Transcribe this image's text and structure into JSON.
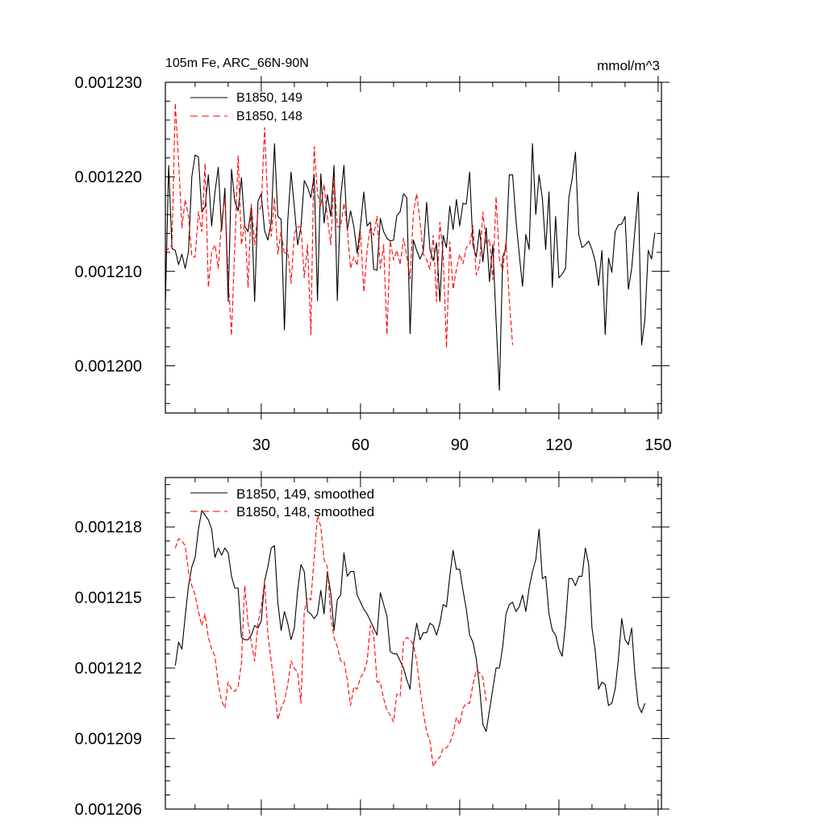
{
  "chart_data": [
    {
      "type": "line",
      "title_left": "105m Fe, ARC_66N-90N",
      "title_right": "mmol/m^3",
      "xlim": [
        1,
        151
      ],
      "ylim": [
        0.001195,
        0.00123
      ],
      "xticks": [
        30,
        60,
        90,
        120,
        150
      ],
      "xtick_labels": [
        "30",
        "60",
        "90",
        "120",
        "150"
      ],
      "yticks": [
        0.0012,
        0.00121,
        0.00122,
        0.00123
      ],
      "ytick_labels": [
        "0.001200",
        "0.001210",
        "0.001220",
        "0.001230"
      ],
      "show_x_labels": true,
      "legend_position": "top-left",
      "series": [
        {
          "name": "B1850, 149",
          "color": "#000000",
          "dash": "solid",
          "x_start": 1,
          "values": [
            0.0012066,
            0.0012212,
            0.0012124,
            0.0012122,
            0.0012107,
            0.0012118,
            0.0012103,
            0.0012121,
            0.00122,
            0.0012223,
            0.0012221,
            0.0012163,
            0.0012168,
            0.0012202,
            0.0012148,
            0.0012184,
            0.001221,
            0.0012143,
            0.0012188,
            0.0012068,
            0.0012208,
            0.0012174,
            0.0012164,
            0.0012199,
            0.0012148,
            0.0012142,
            0.0012168,
            0.0012068,
            0.0012174,
            0.0012182,
            0.0012143,
            0.0012133,
            0.0012152,
            0.0012235,
            0.0012158,
            0.0012155,
            0.0012038,
            0.0012153,
            0.0012205,
            0.0012168,
            0.0012128,
            0.0012147,
            0.0012196,
            0.0012189,
            0.0012178,
            0.0012202,
            0.0012069,
            0.0012203,
            0.0012151,
            0.0012181,
            0.0012158,
            0.0012212,
            0.0012069,
            0.0012178,
            0.0012212,
            0.0012143,
            0.0012164,
            0.0012147,
            0.0012119,
            0.0012148,
            0.0012184,
            0.0012148,
            0.0012152,
            0.0012102,
            0.0012101,
            0.0012156,
            0.0012142,
            0.0012135,
            0.0012132,
            0.0012133,
            0.0012159,
            0.0012163,
            0.0012182,
            0.0012178,
            0.0012034,
            0.0012133,
            0.0012122,
            0.0012113,
            0.0012121,
            0.0012173,
            0.0012123,
            0.0012111,
            0.001213,
            0.0012068,
            0.0012138,
            0.0012125,
            0.0012169,
            0.0012144,
            0.0012176,
            0.0012148,
            0.0012172,
            0.0012171,
            0.0012205,
            0.0012128,
            0.0012115,
            0.0012144,
            0.001211,
            0.0012146,
            0.0012089,
            0.0012128,
            0.0012048,
            0.0011974,
            0.0012115,
            0.0012125,
            0.0012202,
            0.0012202,
            0.0012155,
            0.0012118,
            0.0012084,
            0.0012139,
            0.0012123,
            0.0012235,
            0.001216,
            0.0012202,
            0.0012177,
            0.0012123,
            0.0012184,
            0.0012083,
            0.0012158,
            0.0012093,
            0.0012097,
            0.0012103,
            0.0012178,
            0.0012198,
            0.0012226,
            0.0012139,
            0.0012125,
            0.0012128,
            0.0012132,
            0.0012123,
            0.001211,
            0.0012085,
            0.0012122,
            0.0012033,
            0.0012114,
            0.0012099,
            0.0012142,
            0.0012149,
            0.001215,
            0.0012158,
            0.0012081,
            0.0012103,
            0.0012144,
            0.0012184,
            0.0012022,
            0.0012049,
            0.0012122,
            0.0012113,
            0.0012141
          ]
        },
        {
          "name": "B1850, 148",
          "color": "#ff0000",
          "dash": "dashed",
          "x_start": 1,
          "values": [
            0.0012121,
            0.0012124,
            0.0012128,
            0.0012278,
            0.0012216,
            0.0012146,
            0.0012176,
            0.0012158,
            0.0012116,
            0.0012115,
            0.0012163,
            0.0012142,
            0.0012214,
            0.0012083,
            0.0012121,
            0.0012128,
            0.0012103,
            0.0012153,
            0.0012178,
            0.0012093,
            0.0012032,
            0.0012127,
            0.0012222,
            0.0012128,
            0.0012152,
            0.0012083,
            0.0012171,
            0.0012128,
            0.0012162,
            0.0012169,
            0.0012252,
            0.0012168,
            0.0012137,
            0.0012178,
            0.0012118,
            0.0012142,
            0.0012118,
            0.0012122,
            0.0012087,
            0.001214,
            0.0012147,
            0.0012147,
            0.0012093,
            0.0012128,
            0.0012033,
            0.0012232,
            0.0012182,
            0.0012169,
            0.0012192,
            0.0012157,
            0.0012128,
            0.0012199,
            0.0012147,
            0.0012147,
            0.0012172,
            0.0012145,
            0.0012103,
            0.0012115,
            0.0012106,
            0.0012142,
            0.0012078,
            0.0012122,
            0.0012148,
            0.0012138,
            0.0012158,
            0.0012103,
            0.0012128,
            0.0012033,
            0.0012132,
            0.0012112,
            0.0012122,
            0.0012107,
            0.0012135,
            0.0012116,
            0.0012092,
            0.0012162,
            0.0012182,
            0.0012153,
            0.0012118,
            0.0012112,
            0.0012102,
            0.0012138,
            0.0012068,
            0.0012152,
            0.0012118,
            0.0012019,
            0.0012131,
            0.0012081,
            0.0012102,
            0.0012118,
            0.0012108,
            0.0012125,
            0.0012128,
            0.0012148,
            0.0012096,
            0.0012106,
            0.0012163,
            0.0012128,
            0.0012134,
            0.0012091,
            0.0012179,
            0.0012113,
            0.0012101,
            0.0012132,
            0.0012069,
            0.0012022
          ]
        }
      ]
    },
    {
      "type": "line",
      "xlim": [
        1,
        151
      ],
      "ylim": [
        0.001206,
        0.0012201
      ],
      "xticks": [
        30,
        60,
        90,
        120,
        150
      ],
      "show_x_labels": false,
      "yticks": [
        0.001206,
        0.001209,
        0.001212,
        0.001215,
        0.001218
      ],
      "ytick_labels": [
        "0.001206",
        "0.001209",
        "0.001212",
        "0.001215",
        "0.001218"
      ],
      "legend_position": "top-left",
      "series": [
        {
          "name": "B1850, 149, smoothed",
          "color": "#000000",
          "dash": "solid",
          "x_start": 4,
          "values": [
            0.0012121,
            0.0012131,
            0.0012128,
            0.0012142,
            0.0012155,
            0.0012163,
            0.0012167,
            0.0012179,
            0.0012187,
            0.0012185,
            0.0012183,
            0.0012179,
            0.0012167,
            0.0012171,
            0.0012168,
            0.0012171,
            0.0012169,
            0.0012159,
            0.0012154,
            0.0012154,
            0.0012133,
            0.0012132,
            0.0012132,
            0.0012134,
            0.0012138,
            0.0012137,
            0.001214,
            0.0012157,
            0.0012163,
            0.0012171,
            0.0012172,
            0.0012148,
            0.0012136,
            0.0012144,
            0.0012139,
            0.0012132,
            0.0012137,
            0.0012153,
            0.0012164,
            0.0012161,
            0.0012144,
            0.0012143,
            0.0012141,
            0.0012143,
            0.0012153,
            0.0012143,
            0.0012161,
            0.0012152,
            0.0012136,
            0.0012149,
            0.0012151,
            0.0012169,
            0.0012159,
            0.0012161,
            0.0012161,
            0.0012151,
            0.0012148,
            0.0012145,
            0.0012143,
            0.001214,
            0.0012137,
            0.0012134,
            0.0012152,
            0.0012147,
            0.0012142,
            0.0012127,
            0.0012126,
            0.0012126,
            0.0012123,
            0.001212,
            0.0012115,
            0.0012111,
            0.001213,
            0.0012139,
            0.0012132,
            0.0012135,
            0.0012135,
            0.0012139,
            0.0012138,
            0.0012134,
            0.0012139,
            0.0012147,
            0.0012146,
            0.0012159,
            0.001217,
            0.0012162,
            0.0012162,
            0.0012153,
            0.0012145,
            0.0012134,
            0.0012131,
            0.0012124,
            0.0012112,
            0.0012096,
            0.0012093,
            0.0012102,
            0.0012111,
            0.001212,
            0.001212,
            0.0012129,
            0.0012143,
            0.0012147,
            0.0012148,
            0.0012144,
            0.0012146,
            0.0012151,
            0.0012144,
            0.0012154,
            0.0012161,
            0.0012166,
            0.0012179,
            0.0012158,
            0.0012159,
            0.0012143,
            0.0012136,
            0.0012134,
            0.0012128,
            0.0012125,
            0.0012139,
            0.0012158,
            0.0012158,
            0.0012155,
            0.0012159,
            0.0012159,
            0.0012171,
            0.0012164,
            0.0012137,
            0.0012127,
            0.0012111,
            0.0012114,
            0.0012113,
            0.0012104,
            0.0012105,
            0.0012111,
            0.0012124,
            0.0012141,
            0.0012132,
            0.001213,
            0.0012137,
            0.0012117,
            0.0012104,
            0.0012101,
            0.0012105
          ]
        },
        {
          "name": "B1850, 148, smoothed",
          "color": "#ff0000",
          "dash": "dashed",
          "x_start": 4,
          "values": [
            0.0012171,
            0.0012175,
            0.0012174,
            0.0012172,
            0.0012161,
            0.0012155,
            0.0012151,
            0.0012144,
            0.0012138,
            0.0012143,
            0.0012133,
            0.0012128,
            0.0012125,
            0.0012113,
            0.0012106,
            0.0012103,
            0.0012114,
            0.0012111,
            0.001211,
            0.0012112,
            0.0012122,
            0.0012155,
            0.0012139,
            0.0012131,
            0.0012123,
            0.0012139,
            0.0012146,
            0.0012157,
            0.0012134,
            0.0012123,
            0.0012112,
            0.0012098,
            0.0012103,
            0.0012106,
            0.0012113,
            0.0012123,
            0.001212,
            0.0012118,
            0.0012105,
            0.0012144,
            0.001215,
            0.0012149,
            0.0012167,
            0.0012185,
            0.001218,
            0.0012166,
            0.0012163,
            0.0012142,
            0.0012133,
            0.0012129,
            0.0012123,
            0.0012123,
            0.0012115,
            0.0012104,
            0.0012112,
            0.0012111,
            0.0012116,
            0.0012118,
            0.0012123,
            0.0012138,
            0.0012134,
            0.0012114,
            0.0012114,
            0.0012107,
            0.0012102,
            0.00121,
            0.0012097,
            0.0012109,
            0.0012108,
            0.0012131,
            0.0012133,
            0.0012132,
            0.001213,
            0.0012123,
            0.0012111,
            0.0012101,
            0.0012093,
            0.0012089,
            0.0012078,
            0.0012081,
            0.0012082,
            0.0012086,
            0.0012086,
            0.0012088,
            0.0012092,
            0.0012099,
            0.0012096,
            0.0012103,
            0.0012105,
            0.0012105,
            0.0012113,
            0.0012119,
            0.0012118,
            0.0012116,
            0.0012106
          ]
        }
      ]
    }
  ]
}
